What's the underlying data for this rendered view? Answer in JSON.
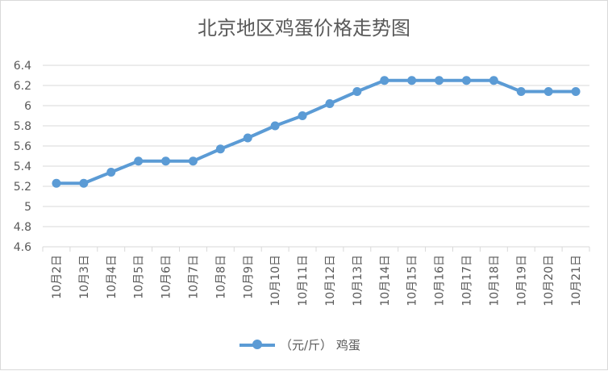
{
  "chart_data": {
    "type": "line",
    "title": "北京地区鸡蛋价格走势图",
    "categories": [
      "10月2日",
      "10月3日",
      "10月4日",
      "10月5日",
      "10月6日",
      "10月7日",
      "10月8日",
      "10月9日",
      "10月10日",
      "10月11日",
      "10月12日",
      "10月13日",
      "10月14日",
      "10月15日",
      "10月16日",
      "10月17日",
      "10月18日",
      "10月19日",
      "10月20日",
      "10月21日"
    ],
    "series": [
      {
        "name": "（元/斤） 鸡蛋",
        "values": [
          5.23,
          5.23,
          5.34,
          5.45,
          5.45,
          5.45,
          5.57,
          5.68,
          5.8,
          5.9,
          6.02,
          6.14,
          6.25,
          6.25,
          6.25,
          6.25,
          6.25,
          6.14,
          6.14,
          6.14
        ]
      }
    ],
    "ylim": [
      4.6,
      6.4
    ],
    "yticks": [
      "6.4",
      "6.2",
      "6",
      "5.8",
      "5.6",
      "5.4",
      "5.2",
      "5",
      "4.8",
      "4.6"
    ],
    "grid": true,
    "legend": "bottom",
    "color": "#5b9bd5"
  }
}
